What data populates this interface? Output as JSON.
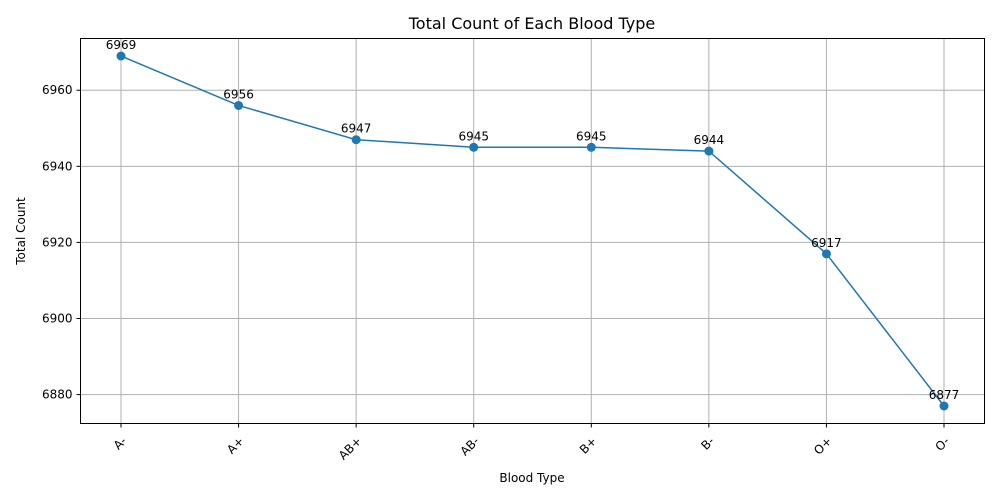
{
  "chart_data": {
    "type": "line",
    "title": "Total Count of Each Blood Type",
    "xlabel": "Blood Type",
    "ylabel": "Total Count",
    "categories": [
      "A-",
      "A+",
      "AB+",
      "AB-",
      "B+",
      "B-",
      "O+",
      "O-"
    ],
    "series": [
      {
        "values": [
          6969,
          6956,
          6947,
          6945,
          6945,
          6944,
          6917,
          6877
        ]
      }
    ],
    "data_labels": [
      "6969",
      "6956",
      "6947",
      "6945",
      "6945",
      "6944",
      "6917",
      "6877"
    ],
    "ylim": [
      6872.4,
      6973.6
    ],
    "yticks": [
      6880,
      6900,
      6920,
      6940,
      6960
    ],
    "ytick_labels": [
      "6880",
      "6900",
      "6920",
      "6940",
      "6960"
    ],
    "x_tick_rotation": 45,
    "grid": true,
    "line_color": "#1f77b4",
    "marker": "circle"
  }
}
